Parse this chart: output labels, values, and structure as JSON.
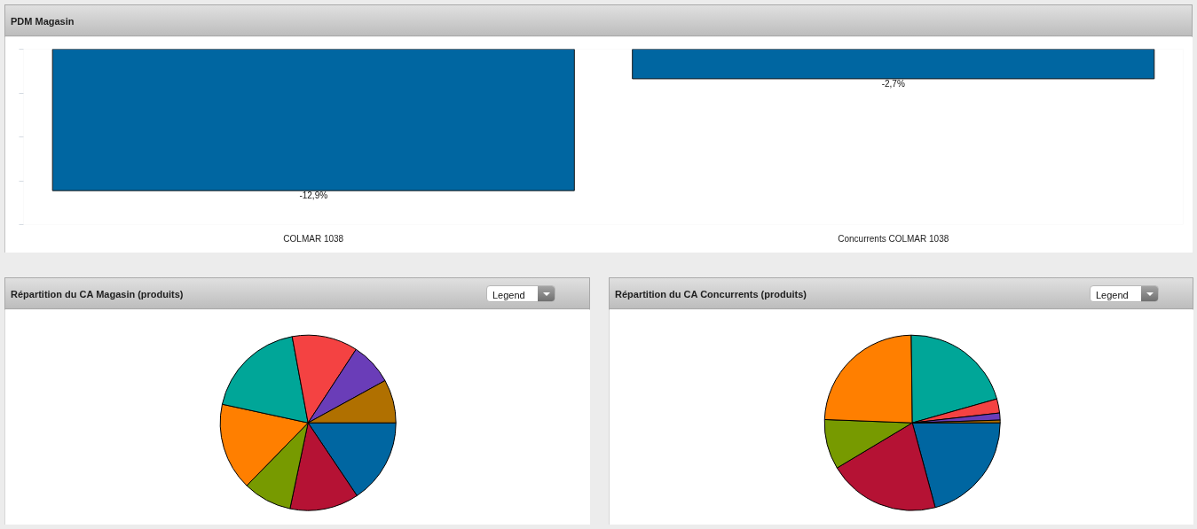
{
  "chart_data": [
    {
      "type": "bar",
      "title": "PDM Magasin",
      "categories": [
        "COLMAR 1038",
        "Concurrents COLMAR 1038"
      ],
      "values": [
        -12.9,
        -2.7
      ],
      "value_labels": [
        "-12,9%",
        "-2,7%"
      ],
      "color": "#0066a1",
      "yticks": [
        {
          "value": 0,
          "label": null
        },
        {
          "value": -4,
          "label": null
        },
        {
          "value": -8,
          "label": null
        },
        {
          "value": -12,
          "label": null
        },
        {
          "value": -16,
          "label": null
        }
      ],
      "tick_labels": "x",
      "grid": false
    },
    {
      "type": "pie",
      "title": "Répartition du CA Magasin (produits)",
      "categories": [
        null,
        null,
        null,
        null,
        null,
        null,
        null,
        null
      ],
      "values": [
        15.6,
        12.7,
        9.0,
        16.1,
        18.7,
        12.1,
        7.8,
        8.0
      ],
      "colors": [
        "#0066a1",
        "#b51234",
        "#779a00",
        "#ff7f00",
        "#00a698",
        "#f44242",
        "#6a3db8",
        "#b07000"
      ],
      "annotations": [
        "Legend"
      ]
    },
    {
      "type": "pie",
      "title": "Répartition du CA Concurrents (produits)",
      "categories": [
        null,
        null,
        null,
        null,
        null,
        null,
        null,
        null
      ],
      "values": [
        20.8,
        20.6,
        9.2,
        24.2,
        20.8,
        2.6,
        1.3,
        0.5
      ],
      "colors": [
        "#0066a1",
        "#b51234",
        "#779a00",
        "#ff7f00",
        "#00a698",
        "#f44242",
        "#6a3db8",
        "#b07000"
      ],
      "annotations": [
        "Legend"
      ]
    }
  ]
}
